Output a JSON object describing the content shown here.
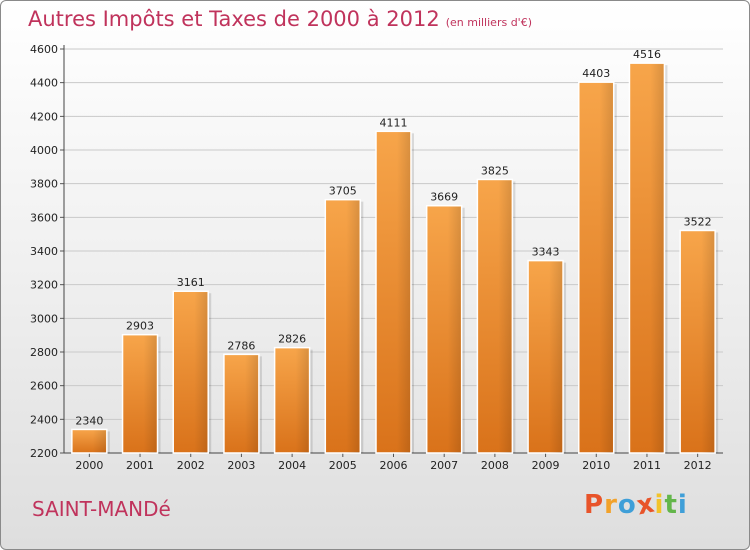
{
  "header": {
    "title": "Autres Impôts et Taxes de 2000 à 2012",
    "unit": "(en milliers d'€)"
  },
  "footer": {
    "city": "SAINT-MANDé",
    "logo_text": "Proxiti",
    "logo_colors": [
      "#e8542a",
      "#f2a22a",
      "#3f9fd8",
      "#e8542a",
      "#f2c32a",
      "#63b64a",
      "#3f9fd8"
    ]
  },
  "chart_data": {
    "type": "bar",
    "categories": [
      "2000",
      "2001",
      "2002",
      "2003",
      "2004",
      "2005",
      "2006",
      "2007",
      "2008",
      "2009",
      "2010",
      "2011",
      "2012"
    ],
    "values": [
      2340,
      2903,
      3161,
      2786,
      2826,
      3705,
      4111,
      3669,
      3825,
      3343,
      4403,
      4516,
      3522
    ],
    "data_labels": [
      "2340",
      "2903",
      "3161",
      "2786",
      "2826",
      "3705",
      "4111",
      "3669",
      "3825",
      "3343",
      "4403",
      "4516",
      "3522"
    ],
    "y_ticks": [
      2200,
      2400,
      2600,
      2800,
      3000,
      3200,
      3400,
      3600,
      3800,
      4000,
      4200,
      4400,
      4600
    ],
    "ylim": [
      2200,
      4600
    ],
    "grid": true,
    "bar_color": "#f0922e",
    "title": "Autres Impôts et Taxes de 2000 à 2012",
    "xlabel": "",
    "ylabel": ""
  }
}
